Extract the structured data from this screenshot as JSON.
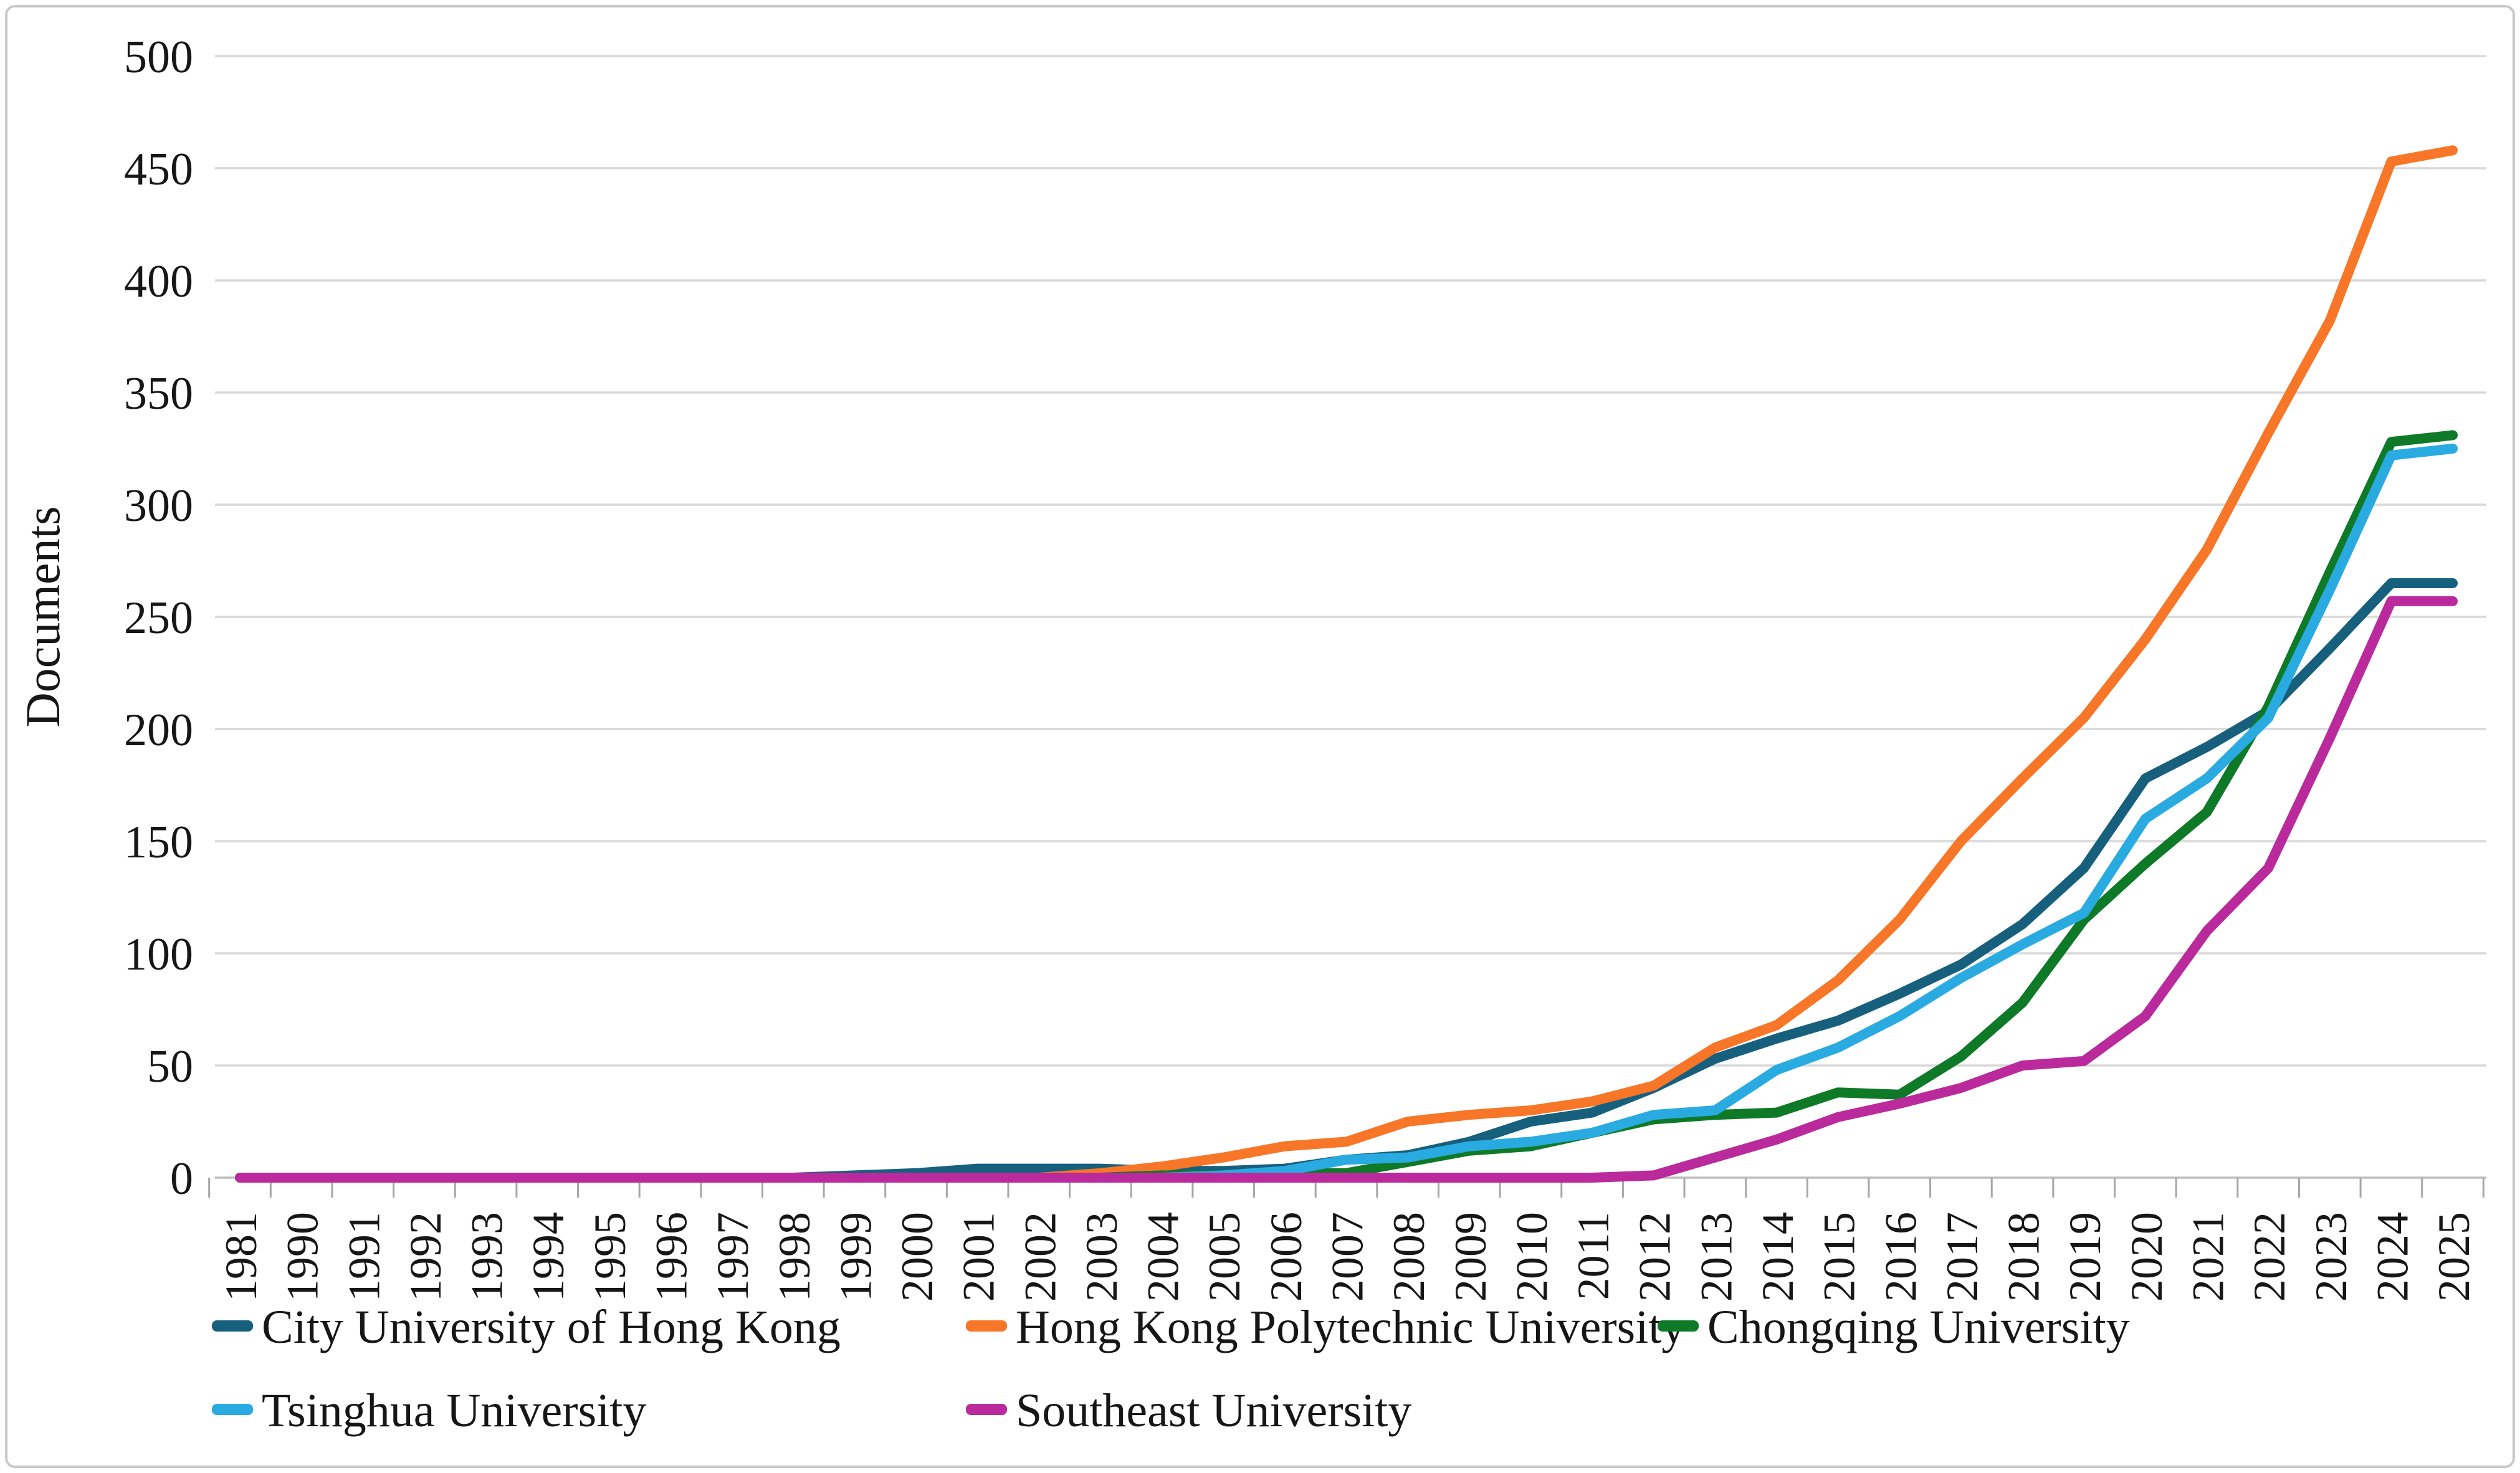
{
  "figure": {
    "background": "#ffffff",
    "border_color": "#c9c9c9"
  },
  "chart_data": {
    "type": "line",
    "title": "",
    "xlabel": "",
    "ylabel": "Documents",
    "ylim": [
      0,
      500
    ],
    "ytick_step": 50,
    "grid": true,
    "legend_position": "bottom",
    "y_tick_labels": [
      "0",
      "50",
      "100",
      "150",
      "200",
      "250",
      "300",
      "350",
      "400",
      "450",
      "500"
    ],
    "categories": [
      "1981",
      "1990",
      "1991",
      "1992",
      "1993",
      "1994",
      "1995",
      "1996",
      "1997",
      "1998",
      "1999",
      "2000",
      "2001",
      "2002",
      "2003",
      "2004",
      "2005",
      "2006",
      "2007",
      "2008",
      "2009",
      "2010",
      "2011",
      "2012",
      "2013",
      "2014",
      "2015",
      "2016",
      "2017",
      "2018",
      "2019",
      "2020",
      "2021",
      "2022",
      "2023",
      "2024",
      "2025"
    ],
    "series": [
      {
        "name": "City University of Hong Kong",
        "color": "#17607D",
        "values": [
          0,
          0,
          0,
          0,
          0,
          0,
          0,
          0,
          0,
          0,
          1,
          2,
          4,
          4,
          4,
          3,
          3,
          4,
          8,
          10,
          16,
          25,
          29,
          40,
          53,
          62,
          70,
          82,
          95,
          113,
          138,
          178,
          192,
          208,
          236,
          265,
          265
        ]
      },
      {
        "name": "Hong Kong Polytechnic University",
        "color": "#F87628",
        "values": [
          0,
          0,
          0,
          0,
          0,
          0,
          0,
          0,
          0,
          0,
          0,
          0,
          0,
          0,
          2,
          5,
          9,
          14,
          16,
          25,
          28,
          30,
          34,
          41,
          58,
          68,
          88,
          115,
          150,
          178,
          205,
          240,
          280,
          332,
          382,
          453,
          458
        ]
      },
      {
        "name": "Chongqing University",
        "color": "#0E7A28",
        "values": [
          0,
          0,
          0,
          0,
          0,
          0,
          0,
          0,
          0,
          0,
          0,
          0,
          0,
          0,
          0,
          1,
          1,
          2,
          2,
          7,
          12,
          14,
          20,
          26,
          28,
          29,
          38,
          37,
          54,
          78,
          115,
          140,
          163,
          210,
          270,
          328,
          331
        ]
      },
      {
        "name": "Tsinghua University",
        "color": "#29ABE2",
        "values": [
          0,
          0,
          0,
          0,
          0,
          0,
          0,
          0,
          0,
          0,
          0,
          0,
          0,
          0,
          0,
          0,
          1,
          3,
          8,
          9,
          14,
          16,
          20,
          28,
          30,
          48,
          58,
          72,
          89,
          104,
          118,
          160,
          178,
          205,
          262,
          322,
          325
        ]
      },
      {
        "name": "Southeast University",
        "color": "#BA2A9C",
        "values": [
          0,
          0,
          0,
          0,
          0,
          0,
          0,
          0,
          0,
          0,
          0,
          0,
          0,
          0,
          0,
          0,
          0,
          0,
          0,
          0,
          0,
          0,
          0,
          1,
          9,
          17,
          27,
          33,
          40,
          50,
          52,
          72,
          110,
          138,
          196,
          257,
          257
        ]
      }
    ]
  }
}
